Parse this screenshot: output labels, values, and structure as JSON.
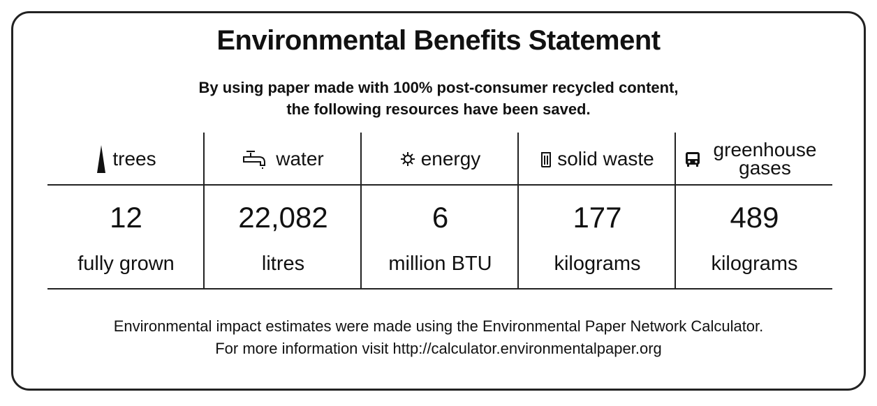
{
  "header": {
    "title": "Environmental Benefits Statement",
    "subtitle_lines": [
      "By using paper made with 100% post-consumer recycled content,",
      "the following resources have been saved."
    ]
  },
  "table": {
    "columns": [
      {
        "label": "trees",
        "value": "12",
        "unit": "fully grown"
      },
      {
        "label": "water",
        "value": "22,082",
        "unit": "litres"
      },
      {
        "label": "energy",
        "value": "6",
        "unit": "million BTU"
      },
      {
        "label": "solid waste",
        "value": "177",
        "unit": "kilograms"
      },
      {
        "label": "greenhouse gases",
        "value": "489",
        "unit": "kilograms"
      }
    ]
  },
  "footer": {
    "lines": [
      "Environmental impact estimates were made using the Environmental Paper Network Calculator.",
      "For more information visit  http://calculator.environmentalpaper.org"
    ]
  }
}
